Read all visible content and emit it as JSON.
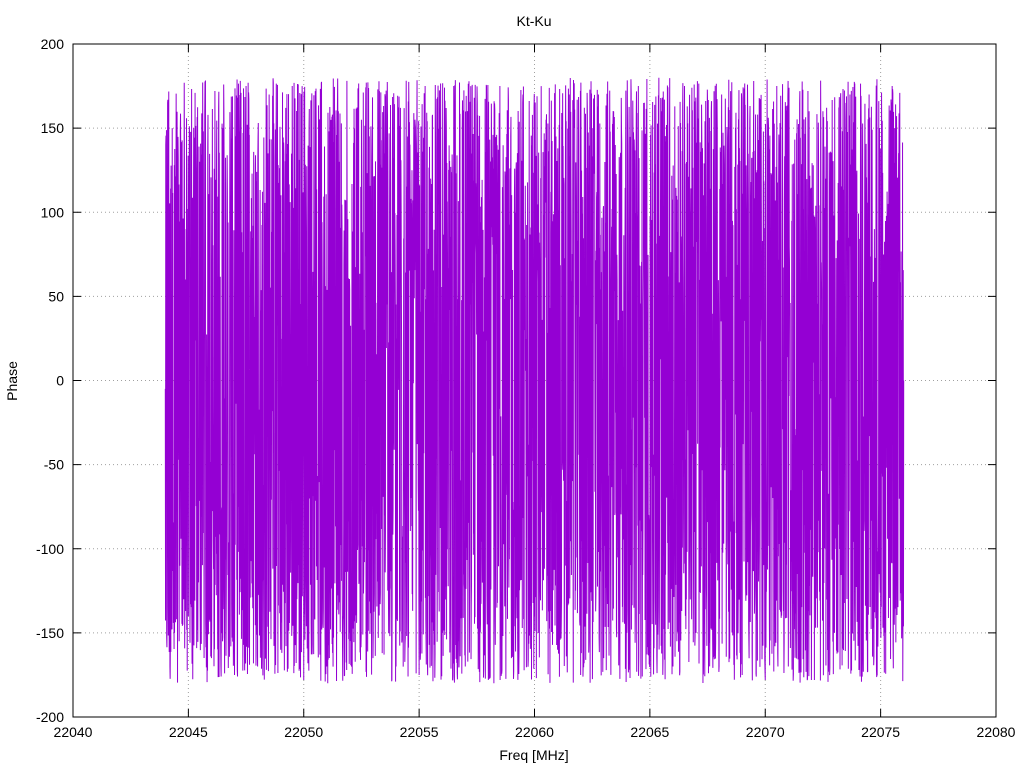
{
  "chart_data": {
    "type": "line",
    "title": "Kt-Ku",
    "xlabel": "Freq [MHz]",
    "ylabel": "Phase",
    "xlim": [
      22040,
      22080
    ],
    "ylim": [
      -200,
      200
    ],
    "x_ticks": [
      22040,
      22045,
      22050,
      22055,
      22060,
      22065,
      22070,
      22075,
      22080
    ],
    "y_ticks": [
      -200,
      -150,
      -100,
      -50,
      0,
      50,
      100,
      150,
      200
    ],
    "grid": true,
    "line_color": "#9400d3",
    "series": [
      {
        "x_range": [
          22044,
          22076
        ],
        "x_step": 0.01,
        "sample_x": [
          22044.0,
          22044.1,
          22044.2,
          22044.3,
          22044.4,
          22044.5,
          22044.6,
          22044.7,
          22044.8,
          22044.9,
          22045.0,
          22045.5,
          22046.0,
          22046.5,
          22047.0,
          22047.5,
          22048.0,
          22048.5,
          22049.0,
          22049.5,
          22050.0,
          22050.5,
          22051.0,
          22051.5,
          22052.0,
          22052.5,
          22053.0,
          22053.5,
          22054.0,
          22054.5,
          22055.0,
          22055.5,
          22056.0,
          22056.5,
          22057.0,
          22057.5,
          22058.0,
          22058.5,
          22059.0,
          22059.5,
          22060.0,
          22060.5,
          22061.0,
          22061.5,
          22062.0,
          22062.5,
          22063.0,
          22063.5,
          22064.0,
          22064.5,
          22065.0,
          22065.5,
          22066.0,
          22066.5,
          22067.0,
          22067.5,
          22068.0,
          22068.5,
          22069.0,
          22069.5,
          22070.0,
          22070.5,
          22071.0,
          22071.5,
          22072.0,
          22072.5,
          22073.0,
          22073.5,
          22074.0,
          22074.5,
          22075.0,
          22075.5,
          22076.0
        ],
        "sample_y": [
          -5,
          165,
          -170,
          150,
          -150,
          135,
          -155,
          110,
          -130,
          90,
          -140,
          130,
          -165,
          150,
          -175,
          175,
          -170,
          170,
          -160,
          175,
          -178,
          172,
          -170,
          160,
          -150,
          155,
          -165,
          135,
          -170,
          145,
          -175,
          120,
          -150,
          175,
          -170,
          150,
          -178,
          175,
          -165,
          170,
          -140,
          155,
          -160,
          170,
          -175,
          150,
          -165,
          140,
          -150,
          175,
          -130,
          160,
          -170,
          175,
          -150,
          165,
          -170,
          172,
          -175,
          178,
          -178,
          175,
          -170,
          172,
          -178,
          160,
          -150,
          165,
          -140,
          170,
          -130,
          175,
          0
        ]
      }
    ]
  }
}
